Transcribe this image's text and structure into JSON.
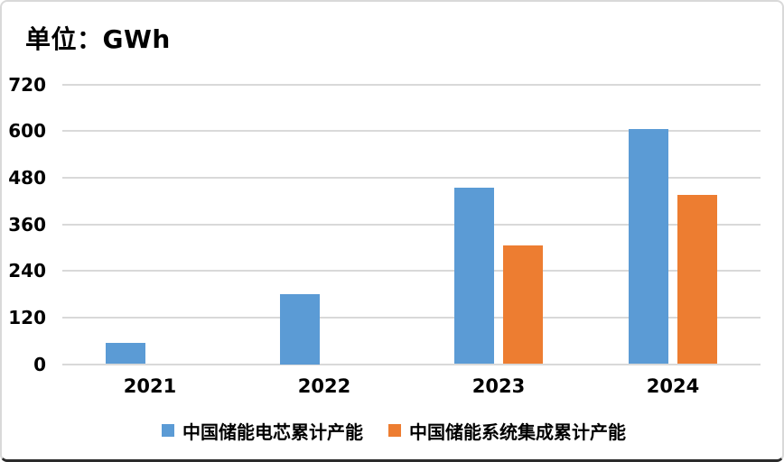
{
  "title": "单位：GWh",
  "colors": {
    "series_blue": "#5B9BD5",
    "series_orange": "#ED7D31",
    "gridline": "#D9D9D9",
    "axis_text": "#000000",
    "frame_border": "#D9D9D9",
    "frame_bottom_edge": "#2B2B2B",
    "background": "#FFFFFF"
  },
  "chart_data": {
    "type": "bar",
    "categories": [
      "2021",
      "2022",
      "2023",
      "2024"
    ],
    "series": [
      {
        "name": "中国储能电芯累计产能",
        "color": "#5B9BD5",
        "values": [
          55,
          180,
          455,
          605
        ]
      },
      {
        "name": "中国储能系统集成累计产能",
        "color": "#ED7D31",
        "values": [
          null,
          null,
          305,
          435
        ]
      }
    ],
    "unit_label": "单位：GWh",
    "xlabel": "",
    "ylabel": "",
    "ylim": [
      0,
      720
    ],
    "yticks": [
      0,
      120,
      240,
      360,
      480,
      600,
      720
    ],
    "grid": true,
    "legend_position": "bottom"
  }
}
